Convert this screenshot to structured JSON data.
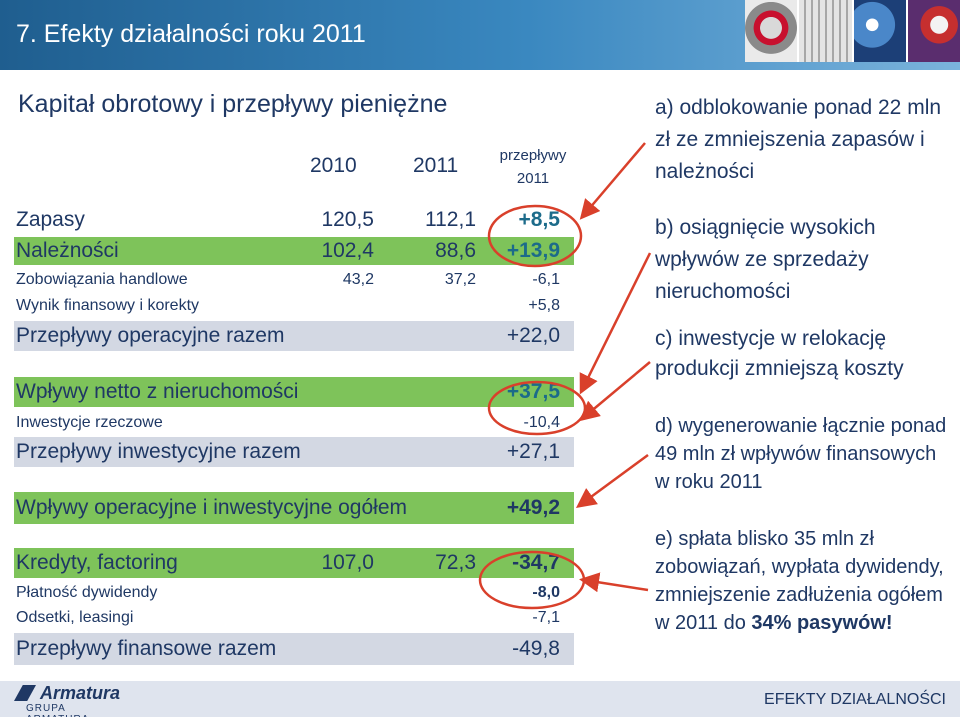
{
  "header": {
    "title": "7. Efekty działalności roku 2011"
  },
  "section_title": "Kapitał obrotowy i przepływy pieniężne",
  "table": {
    "col_2010": "2010",
    "col_2011": "2011",
    "col_flow": "przepływy",
    "col_flow_year": "2011",
    "rows": [
      {
        "label": "Zapasy",
        "v2010": "120,5",
        "v2011": "112,1",
        "flow": "+8,5"
      },
      {
        "label": "Należności",
        "v2010": "102,4",
        "v2011": "88,6",
        "flow": "+13,9"
      },
      {
        "label": "Zobowiązania handlowe",
        "v2010": "43,2",
        "v2011": "37,2",
        "flow": "-6,1"
      },
      {
        "label": "Wynik finansowy i korekty",
        "flow": "+5,8"
      },
      {
        "label": "Przepływy operacyjne razem",
        "flow": "+22,0"
      },
      {
        "label": "Wpływy netto z nieruchomości",
        "flow": "+37,5"
      },
      {
        "label": "Inwestycje rzeczowe",
        "flow": "-10,4"
      },
      {
        "label": "Przepływy inwestycyjne razem",
        "flow": "+27,1"
      },
      {
        "label": "Wpływy operacyjne i inwestycyjne ogółem",
        "flow": "+49,2"
      },
      {
        "label": "Kredyty, factoring",
        "v2010": "107,0",
        "v2011": "72,3",
        "flow": "-34,7"
      },
      {
        "label": "Płatność dywidendy",
        "flow": "-8,0"
      },
      {
        "label": "Odsetki, leasingi",
        "flow": "-7,1"
      },
      {
        "label": "Przepływy finansowe razem",
        "flow": "-49,8"
      }
    ]
  },
  "notes": {
    "a": "a) odblokowanie ponad 22 mln zł ze zmniejszenia zapasów i należności",
    "b": "b) osiągnięcie wysokich wpływów ze sprzedaży nieruchomości",
    "c": "c) inwestycje w relokację produkcji zmniejszą koszty",
    "d": "d) wygenerowanie łącznie ponad 49 mln zł wpływów finansowych w roku 2011",
    "e": "e) spłata blisko 35 mln zł zobowiązań, wypłata dywidendy, zmniejszenie zadłużenia ogółem w 2011 do",
    "e_bold": "34% pasywów!"
  },
  "footer": {
    "logo_name": "Armatura",
    "logo_sub": "GRUPA ARMATURA",
    "right_text": "EFEKTY DZIAŁALNOŚCI"
  },
  "colors": {
    "green_band": "#7ec35a",
    "grey_band": "#d3d8e3",
    "arrow": "#d9402b",
    "text": "#1f3864"
  }
}
